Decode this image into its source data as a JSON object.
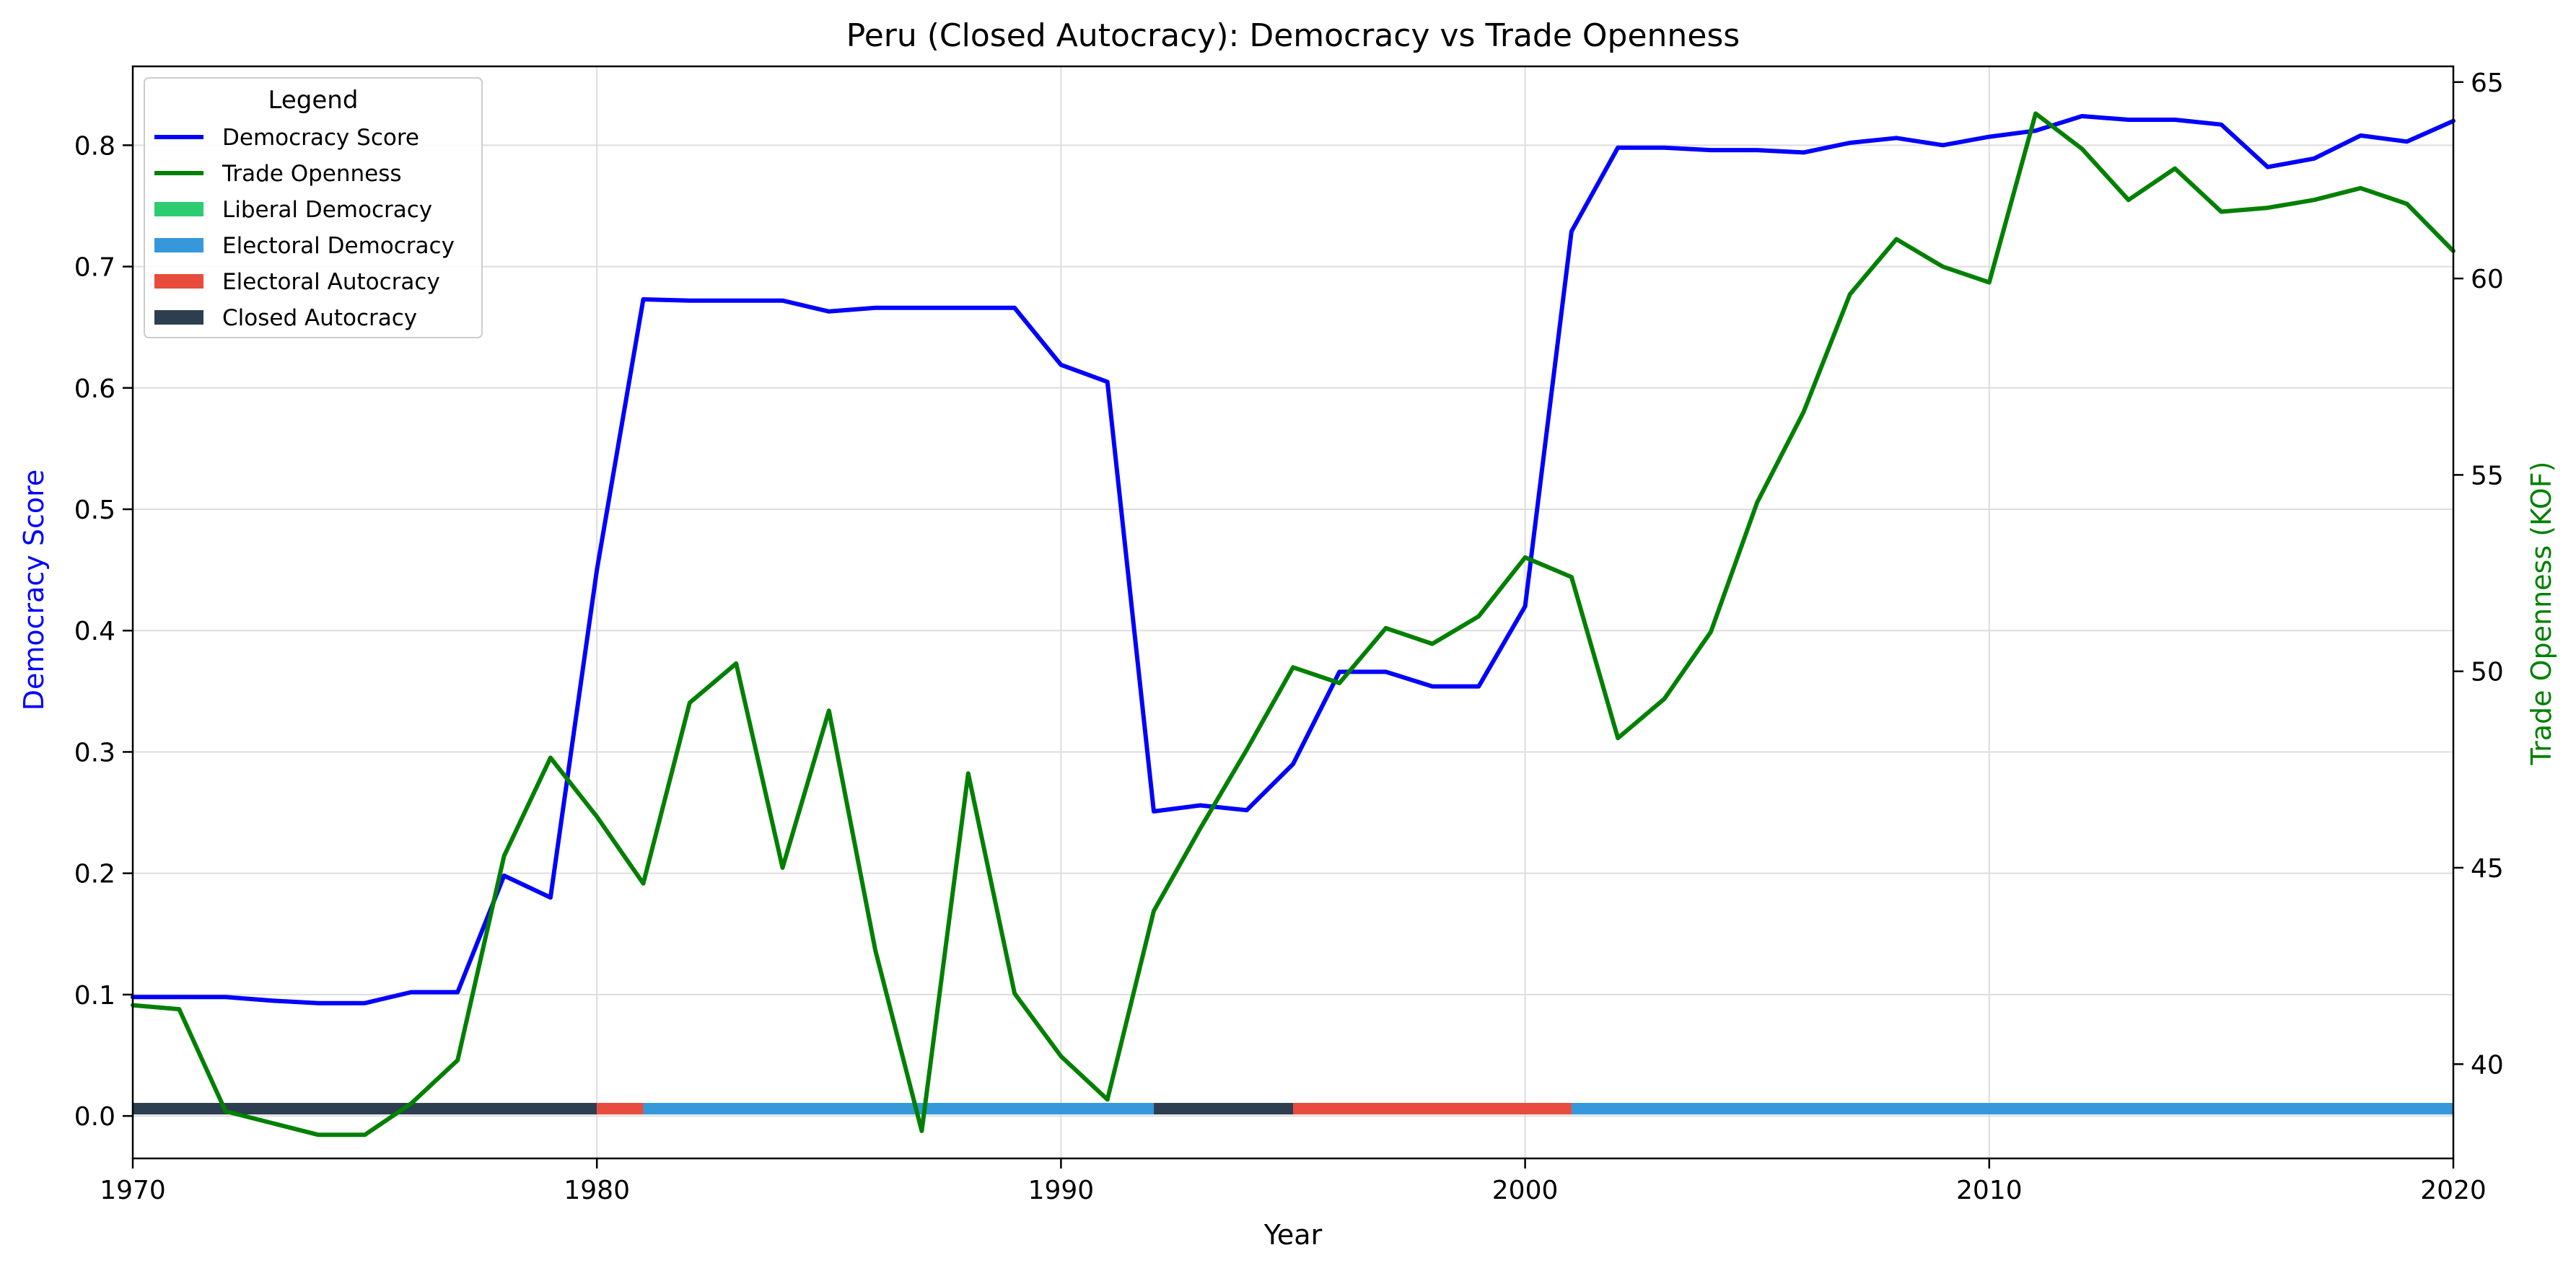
{
  "chart_data": {
    "type": "line",
    "title": "Peru (Closed Autocracy): Democracy vs Trade Openness",
    "xlabel": "Year",
    "ylabel_left": "Democracy Score",
    "ylabel_right": "Trade Openness (KOF)",
    "xlim": [
      1970,
      2020
    ],
    "ylim_left": [
      -0.035,
      0.865
    ],
    "ylim_right": [
      37.6,
      65.4
    ],
    "x_ticks": [
      1970,
      1980,
      1990,
      2000,
      2010,
      2020
    ],
    "y_left_ticks": [
      0.0,
      0.1,
      0.2,
      0.3,
      0.4,
      0.5,
      0.6,
      0.7,
      0.8
    ],
    "y_left_tick_labels": [
      "0.0",
      "0.1",
      "0.2",
      "0.3",
      "0.4",
      "0.5",
      "0.6",
      "0.7",
      "0.8"
    ],
    "y_right_ticks": [
      40,
      45,
      50,
      55,
      60,
      65
    ],
    "grid": true,
    "legend": {
      "title": "Legend",
      "placement": "top-left",
      "entries": [
        {
          "label": "Democracy Score",
          "kind": "line",
          "color": "#0000ff"
        },
        {
          "label": "Trade Openness",
          "kind": "line",
          "color": "#008000"
        },
        {
          "label": "Liberal Democracy",
          "kind": "patch",
          "color": "#2ecc71"
        },
        {
          "label": "Electoral Democracy",
          "kind": "patch",
          "color": "#3498db"
        },
        {
          "label": "Electoral Autocracy",
          "kind": "patch",
          "color": "#e74c3c"
        },
        {
          "label": "Closed Autocracy",
          "kind": "patch",
          "color": "#2c3e50"
        }
      ]
    },
    "series": [
      {
        "name": "Democracy Score",
        "axis": "left",
        "color": "#0000ff",
        "x": [
          1970,
          1971,
          1972,
          1973,
          1974,
          1975,
          1976,
          1977,
          1978,
          1979,
          1980,
          1981,
          1982,
          1983,
          1984,
          1985,
          1986,
          1987,
          1988,
          1989,
          1990,
          1991,
          1992,
          1993,
          1994,
          1995,
          1996,
          1997,
          1998,
          1999,
          2000,
          2001,
          2002,
          2003,
          2004,
          2005,
          2006,
          2007,
          2008,
          2009,
          2010,
          2011,
          2012,
          2013,
          2014,
          2015,
          2016,
          2017,
          2018,
          2019,
          2020
        ],
        "values": [
          0.098,
          0.098,
          0.098,
          0.095,
          0.093,
          0.093,
          0.102,
          0.102,
          0.198,
          0.18,
          0.45,
          0.673,
          0.672,
          0.672,
          0.672,
          0.663,
          0.666,
          0.666,
          0.666,
          0.666,
          0.619,
          0.605,
          0.251,
          0.256,
          0.252,
          0.29,
          0.366,
          0.366,
          0.354,
          0.354,
          0.42,
          0.729,
          0.798,
          0.798,
          0.796,
          0.796,
          0.794,
          0.802,
          0.806,
          0.8,
          0.807,
          0.812,
          0.824,
          0.821,
          0.821,
          0.817,
          0.782,
          0.789,
          0.808,
          0.803,
          0.82
        ]
      },
      {
        "name": "Trade Openness",
        "axis": "right",
        "color": "#008000",
        "x": [
          1970,
          1971,
          1972,
          1973,
          1974,
          1975,
          1976,
          1977,
          1978,
          1979,
          1980,
          1981,
          1982,
          1983,
          1984,
          1985,
          1986,
          1987,
          1988,
          1989,
          1990,
          1991,
          1992,
          1993,
          1994,
          1995,
          1996,
          1997,
          1998,
          1999,
          2000,
          2001,
          2002,
          2003,
          2004,
          2005,
          2006,
          2007,
          2008,
          2009,
          2010,
          2011,
          2012,
          2013,
          2014,
          2015,
          2016,
          2017,
          2018,
          2019,
          2020
        ],
        "values": [
          41.5,
          41.4,
          38.8,
          38.5,
          38.2,
          38.2,
          39.0,
          40.1,
          45.3,
          47.8,
          46.3,
          44.6,
          49.2,
          50.2,
          45.0,
          49.0,
          42.9,
          38.3,
          47.4,
          41.8,
          40.2,
          39.1,
          43.9,
          46.0,
          48.0,
          50.1,
          49.7,
          51.1,
          50.7,
          51.4,
          52.9,
          52.4,
          48.3,
          49.3,
          51.0,
          54.3,
          56.6,
          59.6,
          61.0,
          60.3,
          59.9,
          64.2,
          63.3,
          62.0,
          62.8,
          61.7,
          61.8,
          62.0,
          62.3,
          61.9,
          60.7
        ]
      }
    ],
    "regime_bands": [
      {
        "start": 1970,
        "end": 1980,
        "regime": "Closed Autocracy",
        "color": "#2c3e50"
      },
      {
        "start": 1980,
        "end": 1981,
        "regime": "Electoral Autocracy",
        "color": "#e74c3c"
      },
      {
        "start": 1981,
        "end": 1992,
        "regime": "Electoral Democracy",
        "color": "#3498db"
      },
      {
        "start": 1992,
        "end": 1995,
        "regime": "Closed Autocracy",
        "color": "#2c3e50"
      },
      {
        "start": 1995,
        "end": 2001,
        "regime": "Electoral Autocracy",
        "color": "#e74c3c"
      },
      {
        "start": 2001,
        "end": 2020,
        "regime": "Electoral Democracy",
        "color": "#3498db"
      }
    ],
    "colors": {
      "left_axis_label": "#0000ff",
      "right_axis_label": "#008000",
      "grid": "#dddddd",
      "axes": "#000000"
    }
  }
}
